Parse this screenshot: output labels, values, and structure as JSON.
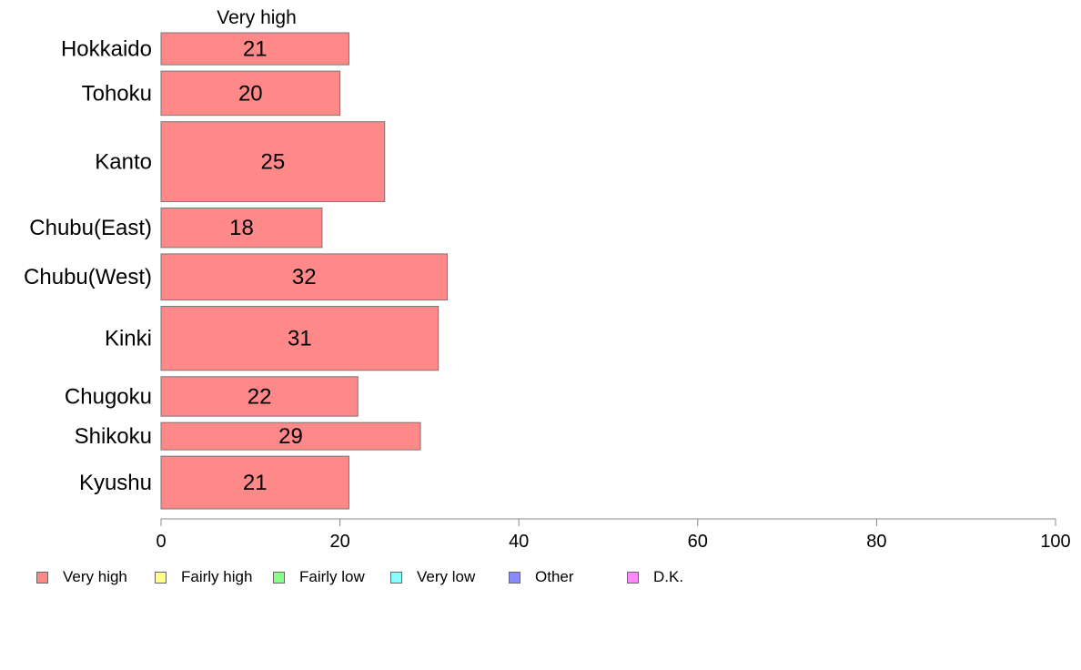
{
  "chart_data": {
    "type": "bar",
    "orientation": "horizontal",
    "series_header": "Very high",
    "categories": [
      "Hokkaido",
      "Tohoku",
      "Kanto",
      "Chubu(East)",
      "Chubu(West)",
      "Kinki",
      "Chugoku",
      "Shikoku",
      "Kyushu"
    ],
    "series": [
      {
        "name": "Very high",
        "color": "#ff8888",
        "values": [
          21,
          20,
          25,
          18,
          32,
          31,
          22,
          29,
          21
        ]
      }
    ],
    "bar_height_weights": [
      34,
      47,
      85,
      42,
      49,
      68,
      42,
      29,
      56
    ],
    "xlim": [
      0,
      100
    ],
    "xticks": [
      0,
      20,
      40,
      60,
      80,
      100
    ],
    "grid": false,
    "legend_position": "bottom",
    "legend": [
      {
        "label": "Very high",
        "color": "#ff8888"
      },
      {
        "label": "Fairly high",
        "color": "#ffff88"
      },
      {
        "label": "Fairly low",
        "color": "#88ff88"
      },
      {
        "label": "Very low",
        "color": "#88ffff"
      },
      {
        "label": "Other",
        "color": "#8888ff"
      },
      {
        "label": "D.K.",
        "color": "#ff88ff"
      }
    ]
  }
}
